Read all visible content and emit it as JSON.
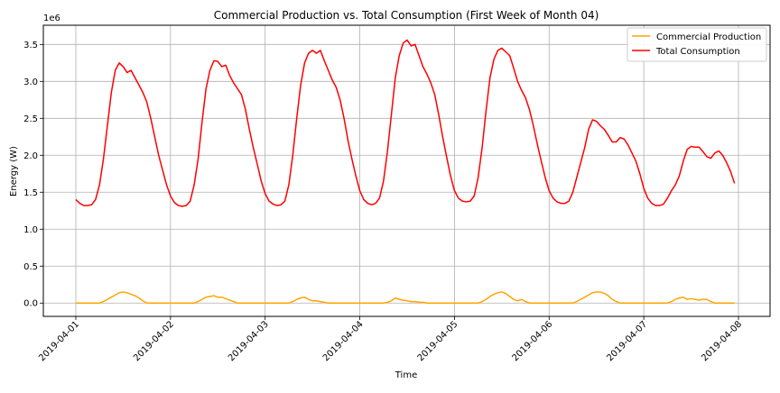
{
  "chart_data": {
    "type": "line",
    "title": "Commercial Production vs. Total Consumption (First Week of Month 04)",
    "xlabel": "Time",
    "ylabel": "Energy (W)",
    "y_offset_label": "1e6",
    "y_scale_factor": 1000000,
    "xlim": [
      "2019-04-01",
      "2019-04-08"
    ],
    "ylim": [
      -0.18,
      3.76
    ],
    "x_ticks": [
      "2019-04-01",
      "2019-04-02",
      "2019-04-03",
      "2019-04-04",
      "2019-04-05",
      "2019-04-06",
      "2019-04-07",
      "2019-04-08"
    ],
    "y_ticks": [
      "0.0",
      "0.5",
      "1.0",
      "1.5",
      "2.0",
      "2.5",
      "3.0",
      "3.5"
    ],
    "y_tick_values": [
      0,
      0.5,
      1.0,
      1.5,
      2.0,
      2.5,
      3.0,
      3.5
    ],
    "grid": true,
    "legend_position": "top-right",
    "series": [
      {
        "name": "Commercial Production",
        "color": "#ffa500",
        "start": "2019-04-01T00:00",
        "step_hours": 1,
        "values": [
          0,
          0,
          0,
          0,
          0,
          0,
          0,
          0.02,
          0.05,
          0.08,
          0.11,
          0.14,
          0.15,
          0.14,
          0.12,
          0.1,
          0.07,
          0.03,
          0,
          0,
          0,
          0,
          0,
          0,
          0,
          0,
          0,
          0,
          0,
          0,
          0,
          0.02,
          0.05,
          0.08,
          0.09,
          0.1,
          0.08,
          0.08,
          0.06,
          0.04,
          0.02,
          0,
          0,
          0,
          0,
          0,
          0,
          0,
          0,
          0,
          0,
          0,
          0,
          0,
          0,
          0.02,
          0.05,
          0.07,
          0.08,
          0.05,
          0.03,
          0.03,
          0.02,
          0.01,
          0,
          0,
          0,
          0,
          0,
          0,
          0,
          0,
          0,
          0,
          0,
          0,
          0,
          0,
          0,
          0.01,
          0.03,
          0.07,
          0.05,
          0.04,
          0.03,
          0.02,
          0.02,
          0.01,
          0.01,
          0,
          0,
          0,
          0,
          0,
          0,
          0,
          0,
          0,
          0,
          0,
          0,
          0,
          0,
          0.02,
          0.05,
          0.09,
          0.12,
          0.14,
          0.15,
          0.13,
          0.09,
          0.05,
          0.03,
          0.05,
          0.02,
          0,
          0,
          0,
          0,
          0,
          0,
          0,
          0,
          0,
          0,
          0,
          0,
          0.02,
          0.05,
          0.08,
          0.11,
          0.14,
          0.15,
          0.15,
          0.13,
          0.1,
          0.05,
          0.02,
          0,
          0,
          0,
          0,
          0,
          0,
          0,
          0,
          0,
          0,
          0,
          0,
          0,
          0.02,
          0.05,
          0.07,
          0.08,
          0.05,
          0.06,
          0.05,
          0.04,
          0.05,
          0.05,
          0.02,
          0,
          0,
          0,
          0,
          0,
          0
        ]
      },
      {
        "name": "Total Consumption",
        "color": "#ff0000",
        "start": "2019-04-01T00:00",
        "step_hours": 1,
        "values": [
          1.4,
          1.35,
          1.32,
          1.32,
          1.33,
          1.4,
          1.6,
          1.95,
          2.4,
          2.85,
          3.15,
          3.25,
          3.2,
          3.12,
          3.15,
          3.05,
          2.95,
          2.85,
          2.72,
          2.5,
          2.25,
          2.0,
          1.8,
          1.6,
          1.45,
          1.36,
          1.32,
          1.31,
          1.32,
          1.38,
          1.6,
          1.95,
          2.45,
          2.9,
          3.15,
          3.28,
          3.27,
          3.2,
          3.22,
          3.08,
          2.98,
          2.9,
          2.82,
          2.62,
          2.35,
          2.1,
          1.88,
          1.65,
          1.48,
          1.38,
          1.34,
          1.32,
          1.33,
          1.38,
          1.6,
          2.0,
          2.5,
          2.95,
          3.25,
          3.38,
          3.42,
          3.38,
          3.42,
          3.28,
          3.15,
          3.02,
          2.92,
          2.75,
          2.5,
          2.2,
          1.95,
          1.72,
          1.52,
          1.4,
          1.35,
          1.33,
          1.35,
          1.42,
          1.65,
          2.05,
          2.55,
          3.05,
          3.35,
          3.52,
          3.56,
          3.48,
          3.5,
          3.35,
          3.2,
          3.1,
          2.98,
          2.82,
          2.55,
          2.25,
          1.98,
          1.72,
          1.52,
          1.42,
          1.38,
          1.37,
          1.38,
          1.45,
          1.7,
          2.1,
          2.6,
          3.05,
          3.3,
          3.42,
          3.45,
          3.4,
          3.35,
          3.18,
          3.0,
          2.88,
          2.78,
          2.62,
          2.4,
          2.15,
          1.92,
          1.7,
          1.52,
          1.42,
          1.37,
          1.35,
          1.35,
          1.38,
          1.5,
          1.7,
          1.9,
          2.1,
          2.35,
          2.48,
          2.46,
          2.4,
          2.35,
          2.27,
          2.18,
          2.18,
          2.24,
          2.22,
          2.14,
          2.03,
          1.92,
          1.75,
          1.55,
          1.42,
          1.35,
          1.32,
          1.32,
          1.34,
          1.42,
          1.52,
          1.6,
          1.72,
          1.92,
          2.08,
          2.12,
          2.11,
          2.11,
          2.05,
          1.98,
          1.96,
          2.03,
          2.06,
          2.0,
          1.9,
          1.78,
          1.62
        ]
      }
    ]
  }
}
